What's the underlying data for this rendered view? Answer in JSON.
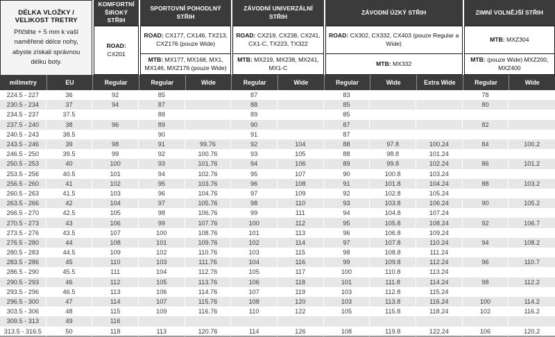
{
  "info": {
    "title": "DÉLKA VLOŽKY / VELIKOST TRETRY",
    "text": "Přičtěte + 5 mm k vaší naměřené délce nohy, abyste získali správnou délku boty."
  },
  "groups": [
    {
      "label": "KOMFORTNÍ ŠIROKÝ STŘIH",
      "cells": [
        {
          "prefix": "ROAD:",
          "text": " CX201"
        }
      ]
    },
    {
      "label": "SPORTOVNÍ POHODLNÝ STŘIH",
      "cells": [
        {
          "prefix": "ROAD:",
          "text": " CX177, CX146, TX213, CXZ176 (pouze Wide)"
        },
        {
          "prefix": "MTB:",
          "text": " MX177, MX168, MX1, MX146, MXZ176 (pouze Wide)"
        }
      ]
    },
    {
      "label": "ZÁVODNÍ UNIVERZÁLNÍ STŘIH",
      "cells": [
        {
          "prefix": "ROAD:",
          "text": " CX219, CX238, CX241, CX1-C, TX223, TX322"
        },
        {
          "prefix": "MTB:",
          "text": " MX219, MX238, MX241, MX1-C"
        }
      ]
    },
    {
      "label": "ZÁVODNÍ ÚZKÝ STŘIH",
      "cells": [
        {
          "prefix": "ROAD:",
          "text": " CX302, CX332, CX403 (pouze Regular a Wide)"
        },
        {
          "prefix": "MTB:",
          "text": " MX332"
        }
      ]
    },
    {
      "label": "ZIMNÍ VOLNĚJŠÍ STŘIH",
      "cells": [
        {
          "prefix": "MTB:",
          "text": " MXZ304"
        },
        {
          "prefix": "MTB:",
          "text": " (pouze Wide) MXZ200, MXZ400"
        }
      ]
    }
  ],
  "columns": [
    "milimetry",
    "EU",
    "Regular",
    "Regular",
    "Wide",
    "Regular",
    "Wide",
    "Regular",
    "Wide",
    "Extra Wide",
    "Regular",
    "Wide"
  ],
  "chart_data": {
    "type": "table",
    "title": "DÉLKA VLOŽKY / VELIKOST TRETRY",
    "column_groups": [
      "",
      "",
      "KOMFORTNÍ ŠIROKÝ STŘIH",
      "SPORTOVNÍ POHODLNÝ STŘIH",
      "SPORTOVNÍ POHODLNÝ STŘIH",
      "ZÁVODNÍ UNIVERZÁLNÍ STŘIH",
      "ZÁVODNÍ UNIVERZÁLNÍ STŘIH",
      "ZÁVODNÍ ÚZKÝ STŘIH",
      "ZÁVODNÍ ÚZKÝ STŘIH",
      "ZÁVODNÍ ÚZKÝ STŘIH",
      "ZIMNÍ VOLNĚJŠÍ STŘIH",
      "ZIMNÍ VOLNĚJŠÍ STŘIH"
    ],
    "columns": [
      "milimetry",
      "EU",
      "Regular",
      "Regular",
      "Wide",
      "Regular",
      "Wide",
      "Regular",
      "Wide",
      "Extra Wide",
      "Regular",
      "Wide"
    ]
  },
  "rows": [
    [
      "224.5 - 227",
      "36",
      "92",
      "85",
      "",
      "87",
      "",
      "83",
      "",
      "",
      "78",
      ""
    ],
    [
      "230.5 - 234",
      "37",
      "94",
      "87",
      "",
      "88",
      "",
      "85",
      "",
      "",
      "80",
      ""
    ],
    [
      "234.5 - 237",
      "37.5",
      "",
      "88",
      "",
      "89",
      "",
      "85",
      "",
      "",
      "",
      ""
    ],
    [
      "237.5 - 240",
      "38",
      "96",
      "89",
      "",
      "90",
      "",
      "87",
      "",
      "",
      "82",
      ""
    ],
    [
      "240.5 - 243",
      "38.5",
      "",
      "90",
      "",
      "91",
      "",
      "87",
      "",
      "",
      "",
      ""
    ],
    [
      "243.5 - 246",
      "39",
      "98",
      "91",
      "99.76",
      "92",
      "104",
      "88",
      "97.8",
      "100.24",
      "84",
      "100.2"
    ],
    [
      "246.5 - 250",
      "39.5",
      "99",
      "92",
      "100.76",
      "93",
      "105",
      "88",
      "98.8",
      "101.24",
      "",
      ""
    ],
    [
      "250.5 - 253",
      "40",
      "100",
      "93",
      "101.76",
      "94",
      "106",
      "89",
      "99.8",
      "102.24",
      "86",
      "101.2"
    ],
    [
      "253.5 - 256",
      "40.5",
      "101",
      "94",
      "102.76",
      "95",
      "107",
      "90",
      "100.8",
      "103.24",
      "",
      ""
    ],
    [
      "256.5 - 260",
      "41",
      "102",
      "95",
      "103.76",
      "96",
      "108",
      "91",
      "101.8",
      "104.24",
      "88",
      "103.2"
    ],
    [
      "260.5 - 263",
      "41.5",
      "103",
      "96",
      "104.76",
      "97",
      "109",
      "92",
      "102.8",
      "105.24",
      "",
      ""
    ],
    [
      "263.5 - 266",
      "42",
      "104",
      "97",
      "105.76",
      "98",
      "110",
      "93",
      "103.8",
      "106.24",
      "90",
      "105.2"
    ],
    [
      "266.5 - 270",
      "42.5",
      "105",
      "98",
      "106.76",
      "99",
      "111",
      "94",
      "104.8",
      "107.24",
      "",
      ""
    ],
    [
      "270.5 - 273",
      "43",
      "106",
      "99",
      "107.76",
      "100",
      "112",
      "95",
      "105.8",
      "108.24",
      "92",
      "106.7"
    ],
    [
      "273.5 - 276",
      "43.5",
      "107",
      "100",
      "108.76",
      "101",
      "113",
      "96",
      "106.8",
      "109.24",
      "",
      ""
    ],
    [
      "276.5 - 280",
      "44",
      "108",
      "101",
      "109.76",
      "102",
      "114",
      "97",
      "107.8",
      "110.24",
      "94",
      "108.2"
    ],
    [
      "280.5 - 283",
      "44.5",
      "109",
      "102",
      "110.76",
      "103",
      "115",
      "98",
      "108.8",
      "111.24",
      "",
      ""
    ],
    [
      "283.5 - 286",
      "45",
      "110",
      "103",
      "111.76",
      "104",
      "116",
      "99",
      "109.8",
      "112.24",
      "96",
      "110.7"
    ],
    [
      "286.5 - 290",
      "45.5",
      "111",
      "104",
      "112.76",
      "105",
      "117",
      "100",
      "110.8",
      "113.24",
      "",
      ""
    ],
    [
      "290.5 - 293",
      "46",
      "112",
      "105",
      "113.76",
      "106",
      "118",
      "101",
      "111.8",
      "114.24",
      "98",
      "112.2"
    ],
    [
      "293.5 - 296",
      "46.5",
      "113",
      "106",
      "114.76",
      "107",
      "119",
      "103",
      "112.8",
      "115.24",
      "",
      ""
    ],
    [
      "296.5 - 300",
      "47",
      "114",
      "107",
      "115.76",
      "108",
      "120",
      "103",
      "113.8",
      "116.24",
      "100",
      "114.2"
    ],
    [
      "303.5 - 306",
      "48",
      "115",
      "109",
      "116.76",
      "110",
      "122",
      "105",
      "115.8",
      "118.24",
      "102",
      "116.2"
    ],
    [
      "309.5 - 313",
      "49",
      "116",
      "",
      "",
      "",
      "",
      "",
      "",
      "",
      "",
      ""
    ],
    [
      "313.5 - 316.5",
      "50",
      "118",
      "113",
      "120.76",
      "114",
      "126",
      "108",
      "119.8",
      "122.24",
      "106",
      "120.2"
    ]
  ],
  "colors": {
    "header_bg": "#3b3b3b",
    "header_text": "#ffffff",
    "row_alt_bg": "#e7e7e7",
    "info_bg": "#f4f4f4",
    "data_text": "#3a3a3a"
  }
}
